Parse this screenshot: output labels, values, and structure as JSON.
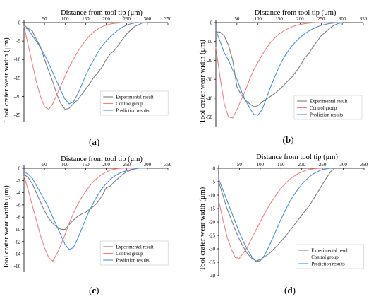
{
  "figure": {
    "label_open": "(",
    "label_close": ")"
  },
  "chart_data": [
    {
      "panel": "a",
      "type": "line",
      "title": "",
      "xlabel": "Distance from tool tip (μm)",
      "ylabel": "Tool crater wear width (μm)",
      "xlim": [
        0,
        350
      ],
      "ylim": [
        -27,
        0
      ],
      "xticks": [
        50,
        100,
        150,
        200,
        250,
        300,
        350
      ],
      "yticks": [
        0,
        -5,
        -10,
        -15,
        -20,
        -25
      ],
      "legend_position": "lower-right",
      "grid": false,
      "series": [
        {
          "name": "Experimental result",
          "color": "#7f7f7f",
          "x": [
            0,
            10,
            20,
            30,
            40,
            50,
            60,
            70,
            80,
            90,
            100,
            110,
            120,
            130,
            140,
            150,
            160,
            170,
            180,
            190,
            200,
            210,
            220,
            230,
            240,
            250,
            260,
            270,
            280,
            290,
            300
          ],
          "y": [
            -0.6,
            -1.6,
            -2.2,
            -4.5,
            -6.5,
            -10,
            -13,
            -16,
            -19.5,
            -22,
            -23.5,
            -23.2,
            -22,
            -21,
            -19.5,
            -18,
            -16.5,
            -14.8,
            -13.5,
            -12,
            -10,
            -8.5,
            -7.5,
            -6,
            -4.5,
            -3,
            -2,
            -1,
            -0.5,
            0,
            0
          ]
        },
        {
          "name": "Control group",
          "color": "#f08080",
          "x": [
            0,
            10,
            20,
            30,
            40,
            50,
            60,
            70,
            80,
            90,
            100,
            110,
            120,
            130,
            140,
            150,
            160,
            170,
            180,
            190,
            200,
            210,
            220,
            230,
            240,
            250,
            260,
            270
          ],
          "y": [
            -1,
            -6,
            -11,
            -16,
            -20,
            -22.8,
            -23.5,
            -22,
            -19.5,
            -17,
            -14.5,
            -12,
            -10,
            -8,
            -6.3,
            -4.8,
            -3.5,
            -2.5,
            -1.7,
            -1.1,
            -0.7,
            -0.4,
            -0.2,
            -0.1,
            0,
            0,
            0,
            0
          ]
        },
        {
          "name": "Prediction results",
          "color": "#4a90d9",
          "x": [
            0,
            10,
            20,
            30,
            40,
            50,
            60,
            70,
            80,
            90,
            100,
            110,
            120,
            130,
            140,
            150,
            160,
            170,
            180,
            190,
            200,
            210,
            220,
            230,
            240,
            250,
            260,
            270,
            280,
            290,
            300
          ],
          "y": [
            -1.2,
            -1.8,
            -3.5,
            -5,
            -6.8,
            -8.7,
            -11,
            -13.5,
            -16,
            -18.5,
            -20.8,
            -22,
            -21.5,
            -19.5,
            -17,
            -14.3,
            -12,
            -10,
            -8,
            -6.3,
            -5,
            -3.8,
            -2.8,
            -1.9,
            -1.2,
            -0.7,
            -0.3,
            -0.1,
            0,
            0,
            0
          ]
        }
      ]
    },
    {
      "panel": "b",
      "type": "line",
      "title": "",
      "xlabel": "Distance from tool tip (μm)",
      "ylabel": "Tool crater wear width (μm)",
      "xlim": [
        0,
        350
      ],
      "ylim": [
        -55,
        0
      ],
      "xticks": [
        50,
        100,
        150,
        200,
        250,
        300,
        350
      ],
      "yticks": [
        0,
        -10,
        -20,
        -30,
        -40,
        -50
      ],
      "legend_position": "lower-right",
      "grid": false,
      "series": [
        {
          "name": "Experimental result",
          "color": "#7f7f7f",
          "x": [
            0,
            10,
            20,
            30,
            40,
            50,
            60,
            70,
            80,
            90,
            100,
            110,
            120,
            130,
            140,
            150,
            160,
            170,
            180,
            190,
            200,
            210,
            220,
            230,
            240,
            250,
            260,
            270,
            280,
            290,
            300
          ],
          "y": [
            -5,
            -5,
            -7,
            -12,
            -20,
            -34,
            -38,
            -41,
            -43,
            -44.5,
            -44,
            -42,
            -40.5,
            -39,
            -37.5,
            -35.5,
            -33.5,
            -31,
            -29,
            -26,
            -23,
            -19,
            -16.5,
            -13,
            -10,
            -7,
            -5,
            -3,
            -1.5,
            -0.5,
            0
          ]
        },
        {
          "name": "Control group",
          "color": "#f08080",
          "x": [
            0,
            10,
            20,
            30,
            40,
            50,
            60,
            70,
            80,
            90,
            100,
            110,
            120,
            130,
            140,
            150,
            160,
            170,
            180,
            190,
            200,
            210,
            220,
            230,
            240,
            250,
            260,
            270
          ],
          "y": [
            -13,
            -29,
            -43,
            -50,
            -50.5,
            -46,
            -41,
            -36,
            -30,
            -25,
            -21,
            -17,
            -13.5,
            -10.5,
            -8,
            -6,
            -4.5,
            -3.3,
            -2.3,
            -1.5,
            -1,
            -0.6,
            -0.3,
            -0.15,
            0,
            0,
            0,
            0
          ]
        },
        {
          "name": "Prediction results",
          "color": "#4a90d9",
          "x": [
            0,
            10,
            20,
            30,
            40,
            50,
            60,
            70,
            80,
            90,
            100,
            110,
            120,
            130,
            140,
            150,
            160,
            170,
            180,
            190,
            200,
            210,
            220,
            230,
            240,
            250,
            260,
            270,
            280,
            290,
            300
          ],
          "y": [
            -4,
            -10,
            -16,
            -20,
            -25,
            -30,
            -36,
            -41,
            -45,
            -48.5,
            -49,
            -46,
            -40,
            -34,
            -28.5,
            -23.5,
            -19,
            -15.5,
            -12.5,
            -10,
            -7.8,
            -6,
            -4.5,
            -3.3,
            -2.3,
            -1.5,
            -0.9,
            -0.5,
            -0.2,
            0,
            0
          ]
        }
      ]
    },
    {
      "panel": "c",
      "type": "line",
      "title": "",
      "xlabel": "Distance from tool tip (μm)",
      "ylabel": "Tool crater wear width (μm)",
      "xlim": [
        0,
        350
      ],
      "ylim": [
        -17,
        0
      ],
      "xticks": [
        50,
        100,
        150,
        200,
        250,
        300,
        350
      ],
      "yticks": [
        0,
        -2,
        -4,
        -6,
        -8,
        -10,
        -12,
        -14,
        -16
      ],
      "legend_position": "lower-right",
      "grid": false,
      "series": [
        {
          "name": "Experimental result",
          "color": "#7f7f7f",
          "x": [
            0,
            10,
            20,
            30,
            40,
            50,
            60,
            70,
            80,
            90,
            100,
            110,
            120,
            130,
            140,
            150,
            160,
            170,
            180,
            190,
            200,
            210,
            220,
            230,
            240,
            250,
            260,
            270,
            280,
            290,
            300
          ],
          "y": [
            -1,
            -1.5,
            -2.5,
            -4,
            -5.5,
            -7,
            -8.2,
            -9,
            -9.6,
            -10,
            -10,
            -9.2,
            -8.5,
            -7.9,
            -7.5,
            -7.2,
            -6.7,
            -6.2,
            -5.5,
            -4.5,
            -3.2,
            -2.9,
            -2.2,
            -1.6,
            -1,
            -0.6,
            -0.3,
            -0.1,
            0,
            0,
            0
          ]
        },
        {
          "name": "Control group",
          "color": "#f08080",
          "x": [
            0,
            10,
            20,
            30,
            40,
            50,
            60,
            70,
            80,
            90,
            100,
            110,
            120,
            130,
            140,
            150,
            160,
            170,
            180,
            190,
            200,
            210,
            220,
            230,
            240,
            250,
            260,
            270
          ],
          "y": [
            -1.3,
            -3.5,
            -6,
            -8.5,
            -11,
            -13,
            -14.6,
            -15.2,
            -14,
            -12.5,
            -10.8,
            -9,
            -7.4,
            -6,
            -4.8,
            -3.8,
            -2.9,
            -2.1,
            -1.5,
            -1,
            -0.6,
            -0.3,
            -0.15,
            -0.05,
            0,
            0,
            0,
            0
          ]
        },
        {
          "name": "Prediction results",
          "color": "#4a90d9",
          "x": [
            0,
            10,
            20,
            30,
            40,
            50,
            60,
            70,
            80,
            90,
            100,
            110,
            120,
            130,
            140,
            150,
            160,
            170,
            180,
            190,
            200,
            210,
            220,
            230,
            240,
            250,
            260,
            270,
            280,
            290,
            300
          ],
          "y": [
            -0.5,
            -1,
            -1.6,
            -2.8,
            -4,
            -5.2,
            -6.5,
            -8,
            -9.5,
            -11,
            -12.5,
            -13.3,
            -13,
            -11.6,
            -10,
            -8.3,
            -6.8,
            -5.5,
            -4.3,
            -3.3,
            -2.5,
            -1.8,
            -1.3,
            -0.9,
            -0.6,
            -0.4,
            -0.2,
            -0.1,
            0,
            0,
            0
          ]
        }
      ]
    },
    {
      "panel": "d",
      "type": "line",
      "title": "",
      "xlabel": "Distance from tool tip (μm)",
      "ylabel": "Tool crater wear width (μm)",
      "xlim": [
        0,
        350
      ],
      "ylim": [
        -40,
        0
      ],
      "xticks": [
        50,
        100,
        150,
        200,
        250,
        300,
        350
      ],
      "yticks": [
        0,
        -5,
        -10,
        -15,
        -20,
        -25,
        -30,
        -35,
        -40
      ],
      "legend_position": "lower-right",
      "grid": false,
      "series": [
        {
          "name": "Experimental result",
          "color": "#7f7f7f",
          "x": [
            0,
            10,
            20,
            30,
            40,
            50,
            60,
            70,
            80,
            90,
            100,
            110,
            120,
            130,
            140,
            150,
            160,
            170,
            180,
            190,
            200,
            210,
            220,
            230,
            240,
            250,
            260,
            270,
            280
          ],
          "y": [
            -5,
            -10,
            -15,
            -19,
            -23,
            -26.5,
            -29.5,
            -32,
            -33.5,
            -34.5,
            -34,
            -33,
            -32,
            -30.5,
            -29,
            -27.2,
            -25.5,
            -23.5,
            -21.5,
            -19.5,
            -17.5,
            -15.5,
            -13.5,
            -11,
            -8.5,
            -6,
            -3.5,
            -1.2,
            0
          ]
        },
        {
          "name": "Control group",
          "color": "#f08080",
          "x": [
            0,
            10,
            20,
            30,
            40,
            50,
            60,
            70,
            80,
            90,
            100,
            110,
            120,
            130,
            140,
            150,
            160,
            170,
            180,
            190,
            200,
            210,
            220,
            230,
            240,
            250,
            260,
            270
          ],
          "y": [
            -12,
            -19,
            -25.5,
            -30,
            -33.3,
            -33.5,
            -31.5,
            -29,
            -26,
            -23,
            -20,
            -17,
            -14.3,
            -11.8,
            -9.5,
            -7.5,
            -5.8,
            -4.3,
            -3.1,
            -2.1,
            -1.4,
            -0.8,
            -0.4,
            -0.2,
            -0.05,
            0,
            0,
            0
          ]
        },
        {
          "name": "Prediction results",
          "color": "#4a90d9",
          "x": [
            0,
            10,
            20,
            30,
            40,
            50,
            60,
            70,
            80,
            90,
            100,
            110,
            120,
            130,
            140,
            150,
            160,
            170,
            180,
            190,
            200,
            210,
            220,
            230,
            240,
            250,
            260,
            270
          ],
          "y": [
            -4,
            -8,
            -12,
            -16,
            -20,
            -24,
            -27.5,
            -30.5,
            -33,
            -34.7,
            -34.5,
            -32.5,
            -29.5,
            -26,
            -22.5,
            -19,
            -15.8,
            -12.8,
            -10.2,
            -8,
            -6,
            -4.4,
            -3,
            -1.9,
            -1.1,
            -0.5,
            -0.2,
            0
          ]
        }
      ]
    }
  ]
}
